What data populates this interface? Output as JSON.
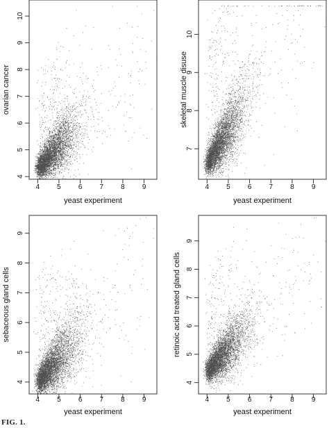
{
  "figure": {
    "caption_fragment": "FIG. 1."
  },
  "chart_data": [
    {
      "type": "scatter",
      "title": "",
      "xlabel": "yeast experiment",
      "ylabel": "ovarian cancer",
      "x_ticks": [
        4,
        5,
        6,
        7,
        8,
        9
      ],
      "y_ticks": [
        4,
        5,
        6,
        7,
        8,
        9,
        10
      ],
      "xlim": [
        3.6,
        9.6
      ],
      "ylim": [
        3.9,
        10.6
      ],
      "grid": false,
      "n_points": 5200,
      "distribution": {
        "x_core": 4.0,
        "y_core": 4.3,
        "x_spread": 0.85,
        "y_slope": 0.85,
        "y_noise": 0.55,
        "ceiling": null
      },
      "series": [
        {
          "points_description": "dense cloud concentrated near (4.0, 4.3), spreading upward and right"
        }
      ]
    },
    {
      "type": "scatter",
      "title": "",
      "xlabel": "yeast experiment",
      "ylabel": "skeletal muscle disuse",
      "x_ticks": [
        4,
        5,
        6,
        7,
        8,
        9
      ],
      "y_ticks": [
        7,
        8,
        9,
        10
      ],
      "xlim": [
        3.6,
        9.6
      ],
      "ylim": [
        6.2,
        10.9
      ],
      "grid": false,
      "n_points": 5200,
      "distribution": {
        "x_core": 4.0,
        "y_core": 6.6,
        "x_spread": 0.8,
        "y_slope": 0.9,
        "y_noise": 0.45,
        "ceiling": 10.75
      },
      "series": [
        {
          "points_description": "dense cloud near (4.0, 6.6), saturated row of points at about 10.75"
        }
      ]
    },
    {
      "type": "scatter",
      "title": "",
      "xlabel": "yeast experiment",
      "ylabel": "sebaceous gland cells",
      "x_ticks": [
        4,
        5,
        6,
        7,
        8,
        9
      ],
      "y_ticks": [
        4,
        5,
        6,
        7,
        8,
        9
      ],
      "xlim": [
        3.6,
        9.6
      ],
      "ylim": [
        3.6,
        9.6
      ],
      "grid": false,
      "n_points": 5200,
      "distribution": {
        "x_core": 4.0,
        "y_core": 4.0,
        "x_spread": 0.85,
        "y_slope": 0.8,
        "y_noise": 0.55,
        "ceiling": null
      },
      "series": [
        {
          "points_description": "dense cloud near (4.0, 4.0), broad spread up to about 9.5"
        }
      ]
    },
    {
      "type": "scatter",
      "title": "",
      "xlabel": "yeast experiment",
      "ylabel": "retinoic acid treated gland cells",
      "x_ticks": [
        4,
        5,
        6,
        7,
        8,
        9
      ],
      "y_ticks": [
        4,
        5,
        6,
        7,
        8,
        9
      ],
      "xlim": [
        3.6,
        9.6
      ],
      "ylim": [
        3.6,
        9.9
      ],
      "grid": false,
      "n_points": 5200,
      "distribution": {
        "x_core": 4.0,
        "y_core": 4.4,
        "x_spread": 0.85,
        "y_slope": 0.8,
        "y_noise": 0.5,
        "ceiling": null
      },
      "series": [
        {
          "points_description": "dense cloud near (4.0, 4.4), spread up to about 9.5"
        }
      ]
    }
  ]
}
